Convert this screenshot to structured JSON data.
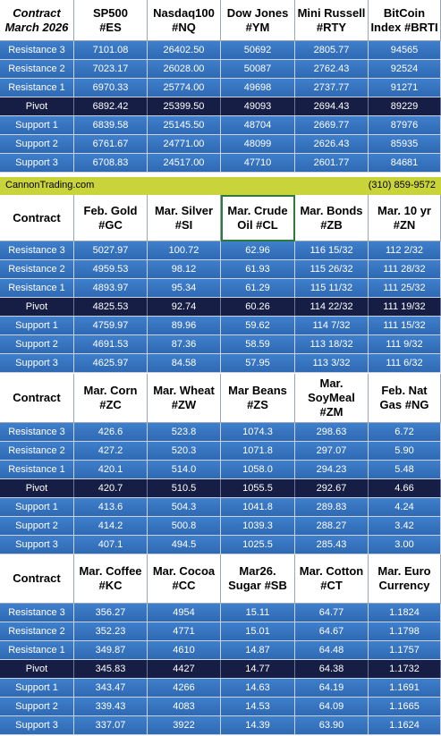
{
  "banner": {
    "site": "CannonTrading.com",
    "phone": "(310) 859-9572"
  },
  "labels": [
    "Resistance 3",
    "Resistance 2",
    "Resistance 1",
    "Pivot",
    "Support 1",
    "Support 2",
    "Support 3"
  ],
  "colors": {
    "row_blue": "#3573c0",
    "pivot_navy": "#161e45",
    "banner_yellow": "#c9d33a",
    "highlight_green": "#2d7a3a"
  },
  "blocks": [
    {
      "corner": "Contract\nMarch 2026",
      "headers": [
        "SP500\n#ES",
        "Nasdaq100\n#NQ",
        "Dow Jones\n#YM",
        "Mini Russell\n#RTY",
        "BitCoin\nIndex #BRTI"
      ],
      "rows": [
        [
          "7101.08",
          "26402.50",
          "50692",
          "2805.77",
          "94565"
        ],
        [
          "7023.17",
          "26028.00",
          "50087",
          "2762.43",
          "92524"
        ],
        [
          "6970.33",
          "25774.00",
          "49698",
          "2737.77",
          "91271"
        ],
        [
          "6892.42",
          "25399.50",
          "49093",
          "2694.43",
          "89229"
        ],
        [
          "6839.58",
          "25145.50",
          "48704",
          "2669.77",
          "87976"
        ],
        [
          "6761.67",
          "24771.00",
          "48099",
          "2626.43",
          "85935"
        ],
        [
          "6708.83",
          "24517.00",
          "47710",
          "2601.77",
          "84681"
        ]
      ]
    },
    {
      "corner": "Contract",
      "headers": [
        "Feb. Gold\n#GC",
        "Mar. Silver\n#SI",
        "Mar. Crude\nOil #CL",
        "Mar. Bonds\n#ZB",
        "Mar. 10 yr\n#ZN"
      ],
      "rows": [
        [
          "5027.97",
          "100.72",
          "62.96",
          "116 15/32",
          "112  2/32"
        ],
        [
          "4959.53",
          "98.12",
          "61.93",
          "115 26/32",
          "111 28/32"
        ],
        [
          "4893.97",
          "95.34",
          "61.29",
          "115 11/32",
          "111 25/32"
        ],
        [
          "4825.53",
          "92.74",
          "60.26",
          "114 22/32",
          "111 19/32"
        ],
        [
          "4759.97",
          "89.96",
          "59.62",
          "114  7/32",
          "111 15/32"
        ],
        [
          "4691.53",
          "87.36",
          "58.59",
          "113 18/32",
          "111  9/32"
        ],
        [
          "4625.97",
          "84.58",
          "57.95",
          "113  3/32",
          "111  6/32"
        ]
      ]
    },
    {
      "corner": "Contract",
      "headers": [
        "Mar. Corn\n#ZC",
        "Mar.  Wheat\n#ZW",
        "Mar Beans\n#ZS",
        "Mar.\nSoyMeal\n#ZM",
        "Feb. Nat\nGas #NG"
      ],
      "rows": [
        [
          "426.6",
          "523.8",
          "1074.3",
          "298.63",
          "6.72"
        ],
        [
          "427.2",
          "520.3",
          "1071.8",
          "297.07",
          "5.90"
        ],
        [
          "420.1",
          "514.0",
          "1058.0",
          "294.23",
          "5.48"
        ],
        [
          "420.7",
          "510.5",
          "1055.5",
          "292.67",
          "4.66"
        ],
        [
          "413.6",
          "504.3",
          "1041.8",
          "289.83",
          "4.24"
        ],
        [
          "414.2",
          "500.8",
          "1039.3",
          "288.27",
          "3.42"
        ],
        [
          "407.1",
          "494.5",
          "1025.5",
          "285.43",
          "3.00"
        ]
      ]
    },
    {
      "corner": "Contract",
      "headers": [
        "Mar. Coffee\n#KC",
        "Mar. Cocoa\n#CC",
        "Mar26.\nSugar #SB",
        "Mar. Cotton\n#CT",
        "Mar. Euro\nCurrency"
      ],
      "rows": [
        [
          "356.27",
          "4954",
          "15.11",
          "64.77",
          "1.1824"
        ],
        [
          "352.23",
          "4771",
          "15.01",
          "64.67",
          "1.1798"
        ],
        [
          "349.87",
          "4610",
          "14.87",
          "64.48",
          "1.1757"
        ],
        [
          "345.83",
          "4427",
          "14.77",
          "64.38",
          "1.1732"
        ],
        [
          "343.47",
          "4266",
          "14.63",
          "64.19",
          "1.1691"
        ],
        [
          "339.43",
          "4083",
          "14.53",
          "64.09",
          "1.1665"
        ],
        [
          "337.07",
          "3922",
          "14.39",
          "63.90",
          "1.1624"
        ]
      ]
    }
  ]
}
